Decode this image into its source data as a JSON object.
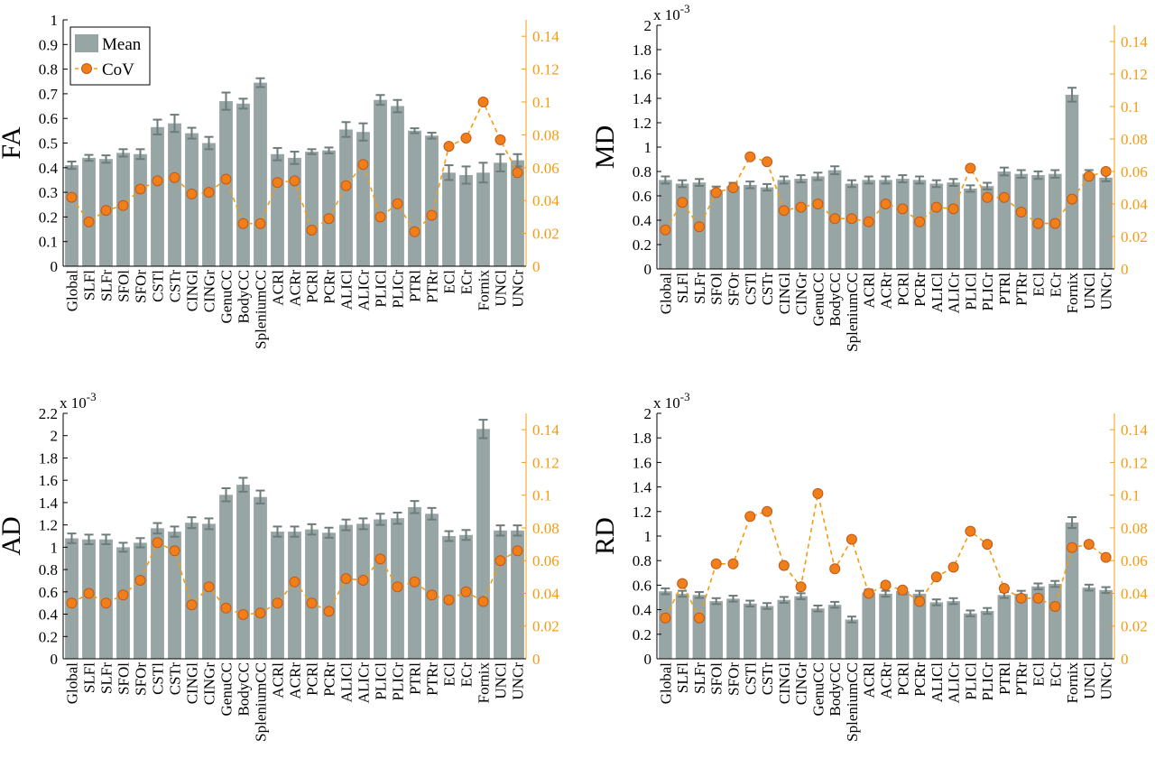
{
  "chart_data": [
    {
      "type": "bar",
      "ylabel": "FA",
      "exponent_label": "",
      "ylim": [
        0,
        1
      ],
      "yticks": [
        "0",
        "0.1",
        "0.2",
        "0.3",
        "0.4",
        "0.5",
        "0.6",
        "0.7",
        "0.8",
        "0.9",
        "1"
      ],
      "y2lim": [
        0,
        0.15
      ],
      "y2ticks": [
        "0",
        "0.02",
        "0.04",
        "0.06",
        "0.08",
        "0.1",
        "0.12",
        "0.14"
      ],
      "categories": [
        "Global",
        "SLFl",
        "SLFr",
        "SFOl",
        "SFOr",
        "CSTl",
        "CSTr",
        "CINGl",
        "CINGr",
        "GenuCC",
        "BodyCC",
        "SpleniumCC",
        "ACRl",
        "ACRr",
        "PCRl",
        "PCRr",
        "ALICl",
        "ALICr",
        "PLICl",
        "PLICr",
        "PTRl",
        "PTRr",
        "ECl",
        "ECr",
        "Fornix",
        "UNCl",
        "UNCr"
      ],
      "series": [
        {
          "name": "Mean",
          "type": "bar",
          "axis": "left",
          "values": [
            0.41,
            0.44,
            0.435,
            0.46,
            0.455,
            0.565,
            0.58,
            0.54,
            0.5,
            0.67,
            0.66,
            0.745,
            0.455,
            0.44,
            0.465,
            0.47,
            0.555,
            0.545,
            0.675,
            0.65,
            0.55,
            0.53,
            0.38,
            0.37,
            0.38,
            0.42,
            0.43
          ],
          "errors": [
            0.015,
            0.012,
            0.015,
            0.015,
            0.02,
            0.03,
            0.035,
            0.022,
            0.025,
            0.035,
            0.02,
            0.018,
            0.025,
            0.025,
            0.01,
            0.012,
            0.03,
            0.035,
            0.02,
            0.025,
            0.01,
            0.012,
            0.03,
            0.035,
            0.04,
            0.035,
            0.025
          ]
        },
        {
          "name": "CoV",
          "type": "line",
          "axis": "right",
          "values": [
            0.042,
            0.027,
            0.034,
            0.037,
            0.047,
            0.052,
            0.054,
            0.044,
            0.045,
            0.053,
            0.026,
            0.026,
            0.051,
            0.052,
            0.022,
            0.029,
            0.049,
            0.062,
            0.03,
            0.038,
            0.021,
            0.031,
            0.073,
            0.078,
            0.1,
            0.077,
            0.057
          ]
        }
      ],
      "legend": {
        "items": [
          "Mean",
          "CoV"
        ],
        "position": "top-left"
      }
    },
    {
      "type": "bar",
      "ylabel": "MD",
      "exponent_label": "x 10",
      "exponent_power": "-3",
      "ylim": [
        0,
        2
      ],
      "yticks": [
        "0",
        "0.2",
        "0.4",
        "0.6",
        "0.8",
        "1",
        "1.2",
        "1.4",
        "1.6",
        "1.8",
        "2"
      ],
      "y2lim": [
        0,
        0.15
      ],
      "y2ticks": [
        "0",
        "0.02",
        "0.04",
        "0.06",
        "0.08",
        "0.1",
        "0.12",
        "0.14"
      ],
      "categories": [
        "Global",
        "SLFl",
        "SLFr",
        "SFOl",
        "SFOr",
        "CSTl",
        "CSTr",
        "CINGl",
        "CINGr",
        "GenuCC",
        "BodyCC",
        "SpleniumCC",
        "ACRl",
        "ACRr",
        "PCRl",
        "PCRr",
        "ALICl",
        "ALICr",
        "PLICl",
        "PLICr",
        "PTRl",
        "PTRr",
        "ECl",
        "ECr",
        "Fornix",
        "UNCl",
        "UNCr"
      ],
      "series": [
        {
          "name": "Mean",
          "type": "bar",
          "axis": "left",
          "values": [
            0.73,
            0.7,
            0.71,
            0.65,
            0.68,
            0.69,
            0.67,
            0.73,
            0.74,
            0.76,
            0.81,
            0.7,
            0.73,
            0.73,
            0.74,
            0.73,
            0.7,
            0.71,
            0.66,
            0.68,
            0.8,
            0.78,
            0.77,
            0.78,
            1.43,
            0.78,
            0.75
          ]
        },
        {
          "name": "CoV",
          "type": "line",
          "axis": "right",
          "values": [
            0.024,
            0.041,
            0.026,
            0.047,
            0.05,
            0.069,
            0.066,
            0.036,
            0.038,
            0.04,
            0.031,
            0.031,
            0.029,
            0.04,
            0.037,
            0.029,
            0.038,
            0.037,
            0.062,
            0.044,
            0.044,
            0.035,
            0.028,
            0.028,
            0.043,
            0.057,
            0.06
          ]
        }
      ]
    },
    {
      "type": "bar",
      "ylabel": "AD",
      "exponent_label": "x 10",
      "exponent_power": "-3",
      "ylim": [
        0,
        2.2
      ],
      "yticks": [
        "0",
        "0.2",
        "0.4",
        "0.6",
        "0.8",
        "1",
        "1.2",
        "1.4",
        "1.6",
        "1.8",
        "2",
        "2.2"
      ],
      "y2lim": [
        0,
        0.15
      ],
      "y2ticks": [
        "0",
        "0.02",
        "0.04",
        "0.06",
        "0.08",
        "0.1",
        "0.12",
        "0.14"
      ],
      "categories": [
        "Global",
        "SLFl",
        "SLFr",
        "SFOl",
        "SFOr",
        "CSTl",
        "CSTr",
        "CINGl",
        "CINGr",
        "GenuCC",
        "BodyCC",
        "SpleniumCC",
        "ACRl",
        "ACRr",
        "PCRl",
        "PCRr",
        "ALICl",
        "ALICr",
        "PLICl",
        "PLICr",
        "PTRl",
        "PTRr",
        "ECl",
        "ECr",
        "Fornix",
        "UNCl",
        "UNCr"
      ],
      "series": [
        {
          "name": "Mean",
          "type": "bar",
          "axis": "left",
          "values": [
            1.08,
            1.07,
            1.07,
            1.0,
            1.04,
            1.17,
            1.14,
            1.22,
            1.21,
            1.47,
            1.56,
            1.45,
            1.14,
            1.14,
            1.16,
            1.13,
            1.2,
            1.21,
            1.25,
            1.26,
            1.36,
            1.3,
            1.1,
            1.11,
            2.06,
            1.15,
            1.15
          ]
        },
        {
          "name": "CoV",
          "type": "line",
          "axis": "right",
          "values": [
            0.034,
            0.04,
            0.034,
            0.039,
            0.048,
            0.071,
            0.066,
            0.033,
            0.044,
            0.031,
            0.027,
            0.028,
            0.034,
            0.047,
            0.034,
            0.029,
            0.049,
            0.048,
            0.061,
            0.044,
            0.047,
            0.039,
            0.036,
            0.041,
            0.035,
            0.06,
            0.066
          ]
        }
      ]
    },
    {
      "type": "bar",
      "ylabel": "RD",
      "exponent_label": "x 10",
      "exponent_power": "-3",
      "ylim": [
        0,
        2
      ],
      "yticks": [
        "0",
        "0.2",
        "0.4",
        "0.6",
        "0.8",
        "1",
        "1.2",
        "1.4",
        "1.6",
        "1.8",
        "2"
      ],
      "y2lim": [
        0,
        0.15
      ],
      "y2ticks": [
        "0",
        "0.02",
        "0.04",
        "0.06",
        "0.08",
        "0.1",
        "0.12",
        "0.14"
      ],
      "categories": [
        "Global",
        "SLFl",
        "SLFr",
        "SFOl",
        "SFOr",
        "CSTl",
        "CSTr",
        "CINGl",
        "CINGr",
        "GenuCC",
        "BodyCC",
        "SpleniumCC",
        "ACRl",
        "ACRr",
        "PCRl",
        "PCRr",
        "ALICl",
        "ALICr",
        "PLICl",
        "PLICr",
        "PTRl",
        "PTRr",
        "ECl",
        "ECr",
        "Fornix",
        "UNCl",
        "UNCr"
      ],
      "series": [
        {
          "name": "Mean",
          "type": "bar",
          "axis": "left",
          "values": [
            0.55,
            0.53,
            0.52,
            0.47,
            0.49,
            0.45,
            0.43,
            0.48,
            0.51,
            0.41,
            0.44,
            0.32,
            0.54,
            0.53,
            0.55,
            0.53,
            0.46,
            0.47,
            0.37,
            0.39,
            0.52,
            0.53,
            0.59,
            0.61,
            1.11,
            0.58,
            0.56
          ]
        },
        {
          "name": "CoV",
          "type": "line",
          "axis": "right",
          "values": [
            0.025,
            0.046,
            0.025,
            0.058,
            0.058,
            0.087,
            0.09,
            0.057,
            0.044,
            0.101,
            0.055,
            0.073,
            0.04,
            0.045,
            0.042,
            0.035,
            0.05,
            0.056,
            0.078,
            0.07,
            0.043,
            0.037,
            0.037,
            0.032,
            0.068,
            0.07,
            0.062
          ]
        }
      ]
    }
  ],
  "colors": {
    "bar": "#97A6A5",
    "error": "#6D7C7B",
    "cov_line": "#F39C12",
    "cov_marker": "#F07F1A",
    "marker_edge": "#C0581A",
    "axis": "#000000",
    "right_axis": "#F39C12"
  }
}
